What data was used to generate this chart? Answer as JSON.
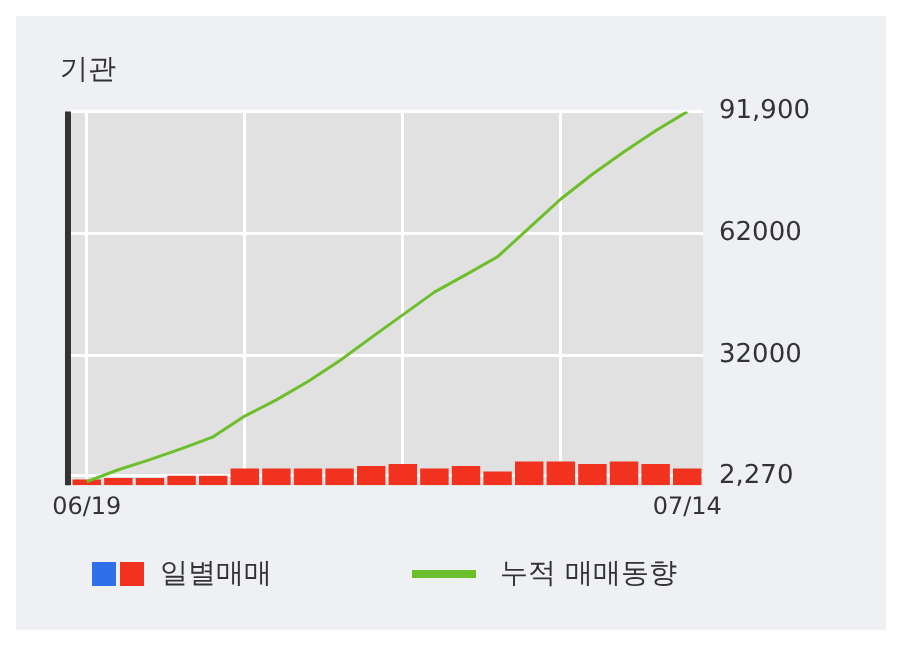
{
  "chart_data": {
    "type": "bar",
    "title": "기관",
    "categories": [
      "06/19",
      null,
      null,
      null,
      null,
      null,
      null,
      null,
      null,
      null,
      null,
      null,
      null,
      null,
      null,
      null,
      null,
      null,
      null,
      "07/14"
    ],
    "series": [
      {
        "name": "일별매매",
        "color": "#f0321e",
        "values": [
          1400,
          1800,
          1800,
          2300,
          2300,
          4100,
          4100,
          4100,
          4100,
          4700,
          5200,
          4100,
          4700,
          3400,
          5800,
          5800,
          5200,
          5800,
          5200,
          4100
        ]
      },
      {
        "name": "누적 매매동향",
        "type": "line",
        "color": "#6cbf2a",
        "values": [
          900,
          3800,
          6300,
          9000,
          11900,
          17000,
          21000,
          25500,
          30600,
          36300,
          41900,
          47500,
          51800,
          56200,
          63300,
          70400,
          76500,
          82000,
          87200,
          91900
        ]
      }
    ],
    "ylim": [
      0,
      91900
    ],
    "yticks": [
      {
        "value": 2270,
        "label": "2,270"
      },
      32000,
      62000,
      {
        "value": 91900,
        "label": "91,900"
      }
    ],
    "grid": true,
    "legend": "bottom",
    "marker": "none"
  }
}
